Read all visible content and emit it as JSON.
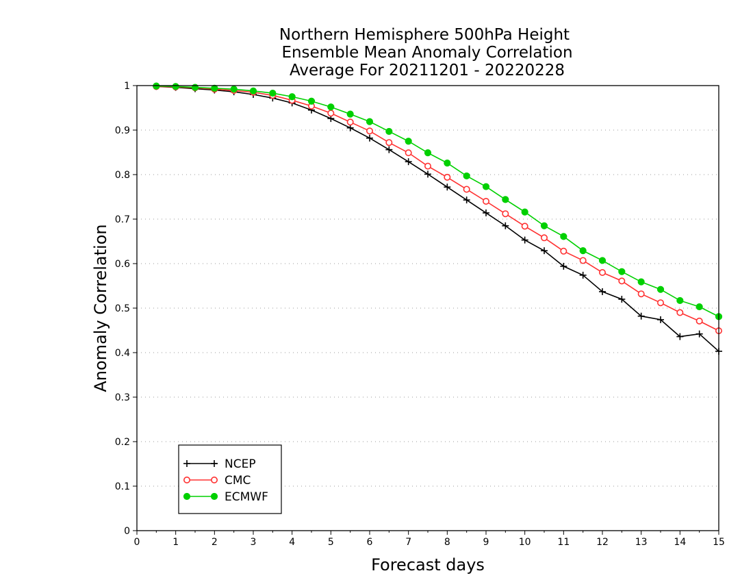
{
  "chart_data": {
    "type": "line",
    "title": [
      "Northern Hemisphere 500hPa Height",
      "Ensemble Mean Anomaly Correlation",
      "Average For 20211201 - 20220228"
    ],
    "xlabel": "Forecast days",
    "ylabel": "Anomaly Correlation",
    "xlim": [
      0,
      15
    ],
    "ylim": [
      0,
      1
    ],
    "xticks": [
      "0",
      "1",
      "2",
      "3",
      "4",
      "5",
      "6",
      "7",
      "8",
      "9",
      "10",
      "11",
      "12",
      "13",
      "14",
      "15"
    ],
    "yticks": [
      "0",
      "0.1",
      "0.2",
      "0.3",
      "0.4",
      "0.5",
      "0.6",
      "0.7",
      "0.8",
      "0.9",
      "1"
    ],
    "grid": "horizontal dotted",
    "legend_position": "bottom-left",
    "x": [
      0.5,
      1,
      1.5,
      2,
      2.5,
      3,
      3.5,
      4,
      4.5,
      5,
      5.5,
      6,
      6.5,
      7,
      7.5,
      8,
      8.5,
      9,
      9.5,
      10,
      10.5,
      11,
      11.5,
      12,
      12.5,
      13,
      13.5,
      14,
      14.5,
      15
    ],
    "series": [
      {
        "name": "NCEP",
        "color": "#000000",
        "marker": "plus",
        "values": [
          0.998,
          0.996,
          0.993,
          0.99,
          0.986,
          0.98,
          0.972,
          0.961,
          0.945,
          0.926,
          0.905,
          0.882,
          0.856,
          0.829,
          0.801,
          0.772,
          0.743,
          0.714,
          0.685,
          0.653,
          0.629,
          0.594,
          0.574,
          0.537,
          0.52,
          0.482,
          0.474,
          0.436,
          0.442,
          0.403
        ]
      },
      {
        "name": "CMC",
        "color": "#ff3030",
        "marker": "open-circle",
        "values": [
          0.998,
          0.997,
          0.995,
          0.992,
          0.989,
          0.985,
          0.978,
          0.967,
          0.954,
          0.938,
          0.918,
          0.898,
          0.872,
          0.849,
          0.819,
          0.794,
          0.767,
          0.74,
          0.712,
          0.684,
          0.658,
          0.628,
          0.607,
          0.58,
          0.561,
          0.532,
          0.512,
          0.49,
          0.471,
          0.449
        ]
      },
      {
        "name": "ECMWF",
        "color": "#00d000",
        "marker": "filled-circle",
        "values": [
          0.999,
          0.998,
          0.996,
          0.994,
          0.992,
          0.988,
          0.983,
          0.975,
          0.965,
          0.952,
          0.936,
          0.919,
          0.897,
          0.875,
          0.849,
          0.826,
          0.797,
          0.773,
          0.744,
          0.716,
          0.685,
          0.661,
          0.629,
          0.607,
          0.582,
          0.559,
          0.542,
          0.517,
          0.503,
          0.481
        ]
      }
    ]
  }
}
